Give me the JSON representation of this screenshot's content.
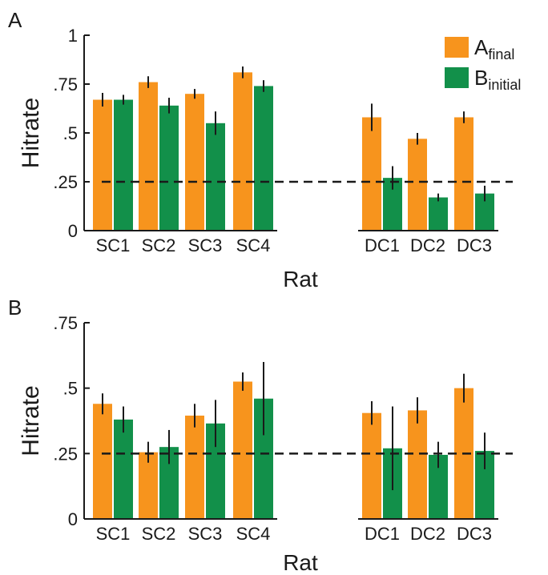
{
  "chart_data": [
    {
      "panel": "A",
      "type": "bar",
      "categories": [
        "SC1",
        "SC2",
        "SC3",
        "SC4",
        "DC1",
        "DC2",
        "DC3"
      ],
      "xlabel": "Rat",
      "ylabel": "Hitrate",
      "ylim": [
        0,
        1
      ],
      "yticks": [
        0,
        0.25,
        0.5,
        0.75,
        1
      ],
      "ytick_labels": [
        "0",
        ".25",
        ".5",
        ".75",
        "1"
      ],
      "reference_line": 0.25,
      "legend": {
        "placement": "top-right",
        "entries": [
          {
            "base": "A",
            "sub": "final",
            "color": "#f7941d"
          },
          {
            "base": "B",
            "sub": "initial",
            "color": "#12904a"
          }
        ]
      },
      "series": [
        {
          "color": "#f7941d",
          "values": [
            0.67,
            0.76,
            0.7,
            0.81,
            0.58,
            0.47,
            0.58
          ],
          "errors": [
            0.035,
            0.03,
            0.025,
            0.03,
            0.07,
            0.03,
            0.03
          ]
        },
        {
          "color": "#12904a",
          "values": [
            0.67,
            0.64,
            0.55,
            0.74,
            0.27,
            0.17,
            0.19
          ],
          "errors": [
            0.025,
            0.04,
            0.06,
            0.03,
            0.06,
            0.02,
            0.04
          ]
        }
      ]
    },
    {
      "panel": "B",
      "type": "bar",
      "categories": [
        "SC1",
        "SC2",
        "SC3",
        "SC4",
        "DC1",
        "DC2",
        "DC3"
      ],
      "xlabel": "Rat",
      "ylabel": "Hitrate",
      "ylim": [
        0,
        0.75
      ],
      "yticks": [
        0,
        0.25,
        0.5,
        0.75
      ],
      "ytick_labels": [
        "0",
        ".25",
        ".5",
        ".75"
      ],
      "reference_line": 0.25,
      "series": [
        {
          "color": "#f7941d",
          "values": [
            0.44,
            0.255,
            0.395,
            0.525,
            0.405,
            0.415,
            0.5
          ],
          "errors": [
            0.04,
            0.04,
            0.045,
            0.035,
            0.045,
            0.05,
            0.055
          ]
        },
        {
          "color": "#12904a",
          "values": [
            0.38,
            0.275,
            0.365,
            0.46,
            0.27,
            0.245,
            0.26
          ],
          "errors": [
            0.05,
            0.065,
            0.09,
            0.14,
            0.16,
            0.05,
            0.07
          ]
        }
      ]
    }
  ]
}
